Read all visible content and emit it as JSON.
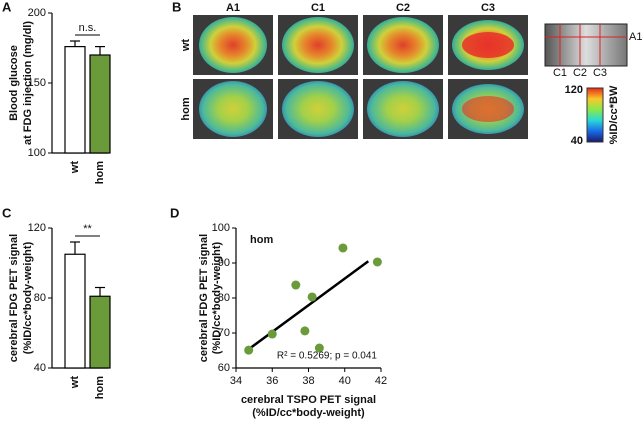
{
  "chart_data": [
    {
      "type": "bar",
      "panel_label": "A",
      "ylabel": [
        "Blood glucose",
        "at FDG injection (mg/dl)"
      ],
      "categories": [
        "wt",
        "hom"
      ],
      "values": [
        176,
        170
      ],
      "errors": [
        4,
        6
      ],
      "colors": [
        "#ffffff",
        "#6a9a3a"
      ],
      "ylim": [
        100,
        200
      ],
      "yticks": [
        100,
        150,
        200
      ],
      "annotation": "n.s."
    },
    {
      "type": "bar",
      "panel_label": "C",
      "ylabel": [
        "cerebral FDG PET signal",
        "(%ID/cc*body-weight)"
      ],
      "categories": [
        "wt",
        "hom"
      ],
      "values": [
        105,
        81
      ],
      "errors": [
        7,
        5
      ],
      "colors": [
        "#ffffff",
        "#6a9a3a"
      ],
      "ylim": [
        40,
        120
      ],
      "yticks": [
        40,
        80,
        120
      ],
      "annotation": "**"
    },
    {
      "type": "scatter",
      "panel_label": "D",
      "subtitle": "hom",
      "xlabel": [
        "cerebral TSPO PET signal",
        "(%ID/cc*body-weight)"
      ],
      "ylabel": [
        "cerebral FDG PET signal",
        "(%ID/cc*body-weight)"
      ],
      "x": [
        34.7,
        36.0,
        37.3,
        37.8,
        38.2,
        38.6,
        39.9,
        41.8
      ],
      "values": [
        65.1,
        69.7,
        83.7,
        70.6,
        80.3,
        65.7,
        94.3,
        90.3
      ],
      "color": "#6a9a3a",
      "fit_line": {
        "x": [
          34.6,
          41.3
        ],
        "y": [
          65,
          90.5
        ]
      },
      "annotation": "R² = 0.5269; p = 0.041",
      "xlim": [
        34,
        42
      ],
      "xticks": [
        34,
        36,
        38,
        40,
        42
      ],
      "ylim": [
        60,
        100
      ],
      "yticks": [
        60,
        70,
        80,
        90,
        100
      ]
    }
  ],
  "images": {
    "panel_label": "B",
    "columns": [
      "A1",
      "C1",
      "C2",
      "C3"
    ],
    "rows": [
      "wt",
      "hom"
    ],
    "inset_labels": [
      "C1",
      "C2",
      "C3"
    ],
    "inset_side_label": "A1",
    "colorbar": {
      "max": 120,
      "min": 40,
      "label": "%ID/cc*BW"
    }
  }
}
